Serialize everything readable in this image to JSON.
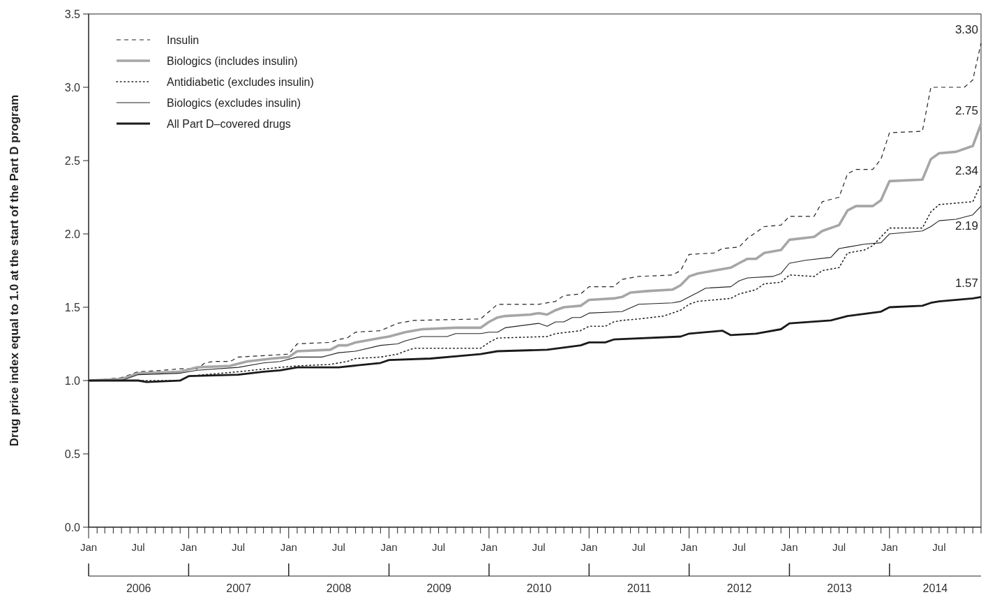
{
  "chart_data": {
    "type": "line",
    "ylabel": "Drug price index equal to 1.0 at the start of the Part D program",
    "xlim": [
      "2006-01",
      "2014-12"
    ],
    "ylim": [
      0,
      3.5
    ],
    "yticks": [
      {
        "value": 0,
        "label": "0.0"
      },
      {
        "value": 0.5,
        "label": "0.5"
      },
      {
        "value": 1,
        "label": "1.0"
      },
      {
        "value": 1.5,
        "label": "1.5"
      },
      {
        "value": 2,
        "label": "2.0"
      },
      {
        "value": 2.5,
        "label": "2.5"
      },
      {
        "value": 3,
        "label": "3.0"
      },
      {
        "value": 3.5,
        "label": "3.5"
      }
    ],
    "xticks": [
      {
        "value": "2006-01",
        "label": "Jan"
      },
      {
        "value": "2006-07",
        "label": "Jul"
      },
      {
        "value": "2007-01",
        "label": "Jan"
      },
      {
        "value": "2007-07",
        "label": "Jul"
      },
      {
        "value": "2008-01",
        "label": "Jan"
      },
      {
        "value": "2008-07",
        "label": "Jul"
      },
      {
        "value": "2009-01",
        "label": "Jan"
      },
      {
        "value": "2009-07",
        "label": "Jul"
      },
      {
        "value": "2010-01",
        "label": "Jan"
      },
      {
        "value": "2010-07",
        "label": "Jul"
      },
      {
        "value": "2011-01",
        "label": "Jan"
      },
      {
        "value": "2011-07",
        "label": "Jul"
      },
      {
        "value": "2012-01",
        "label": "Jan"
      },
      {
        "value": "2012-07",
        "label": "Jul"
      },
      {
        "value": "2013-01",
        "label": "Jan"
      },
      {
        "value": "2013-07",
        "label": "Jul"
      },
      {
        "value": "2014-01",
        "label": "Jan"
      },
      {
        "value": "2014-07",
        "label": "Jul"
      }
    ],
    "annotations": [
      "2006",
      "2007",
      "2008",
      "2009",
      "2010",
      "2011",
      "2012",
      "2013",
      "2014"
    ],
    "legend": "top left",
    "grid": false,
    "marker": "none",
    "series": [
      {
        "name": "Insulin",
        "color": "#222222",
        "line_style": "dashed",
        "x": [
          "2006-01",
          "2006-05",
          "2006-07",
          "2006-10",
          "2006-12",
          "2007-02",
          "2007-03",
          "2007-04",
          "2007-06",
          "2007-07",
          "2007-10",
          "2008-01",
          "2008-02",
          "2008-06",
          "2008-07",
          "2008-08",
          "2008-09",
          "2008-12",
          "2009-02",
          "2009-04",
          "2009-12",
          "2010-01",
          "2010-02",
          "2010-07",
          "2010-09",
          "2010-10",
          "2010-12",
          "2011-01",
          "2011-04",
          "2011-05",
          "2011-07",
          "2011-11",
          "2011-12",
          "2012-01",
          "2012-04",
          "2012-05",
          "2012-07",
          "2012-08",
          "2012-10",
          "2012-12",
          "2013-01",
          "2013-04",
          "2013-05",
          "2013-07",
          "2013-08",
          "2013-09",
          "2013-11",
          "2013-12",
          "2014-01",
          "2014-05",
          "2014-06",
          "2014-10",
          "2014-11",
          "2014-12"
        ],
        "values": [
          1.0,
          1.02,
          1.06,
          1.07,
          1.08,
          1.08,
          1.12,
          1.13,
          1.13,
          1.16,
          1.17,
          1.18,
          1.25,
          1.26,
          1.28,
          1.29,
          1.33,
          1.34,
          1.39,
          1.41,
          1.42,
          1.47,
          1.52,
          1.52,
          1.54,
          1.58,
          1.59,
          1.64,
          1.64,
          1.69,
          1.71,
          1.72,
          1.75,
          1.86,
          1.87,
          1.9,
          1.91,
          1.97,
          2.05,
          2.06,
          2.12,
          2.12,
          2.22,
          2.25,
          2.41,
          2.44,
          2.44,
          2.51,
          2.69,
          2.7,
          3.0,
          3.0,
          3.05,
          3.3
        ],
        "value_labels": [
          null,
          null,
          null,
          null,
          null,
          null,
          null,
          null,
          null,
          null,
          null,
          null,
          null,
          null,
          null,
          null,
          null,
          null,
          null,
          null,
          null,
          null,
          null,
          null,
          null,
          null,
          null,
          null,
          null,
          null,
          null,
          null,
          null,
          null,
          null,
          null,
          null,
          null,
          null,
          null,
          null,
          null,
          null,
          null,
          null,
          null,
          null,
          null,
          null,
          null,
          null,
          null,
          null,
          "3.30"
        ]
      },
      {
        "name": "Biologics (includes insulin)",
        "color": "#a6a6a6",
        "line_style": "solid",
        "x": [
          "2006-01",
          "2006-05",
          "2006-07",
          "2006-12",
          "2007-02",
          "2007-06",
          "2007-08",
          "2007-11",
          "2008-01",
          "2008-02",
          "2008-06",
          "2008-07",
          "2008-08",
          "2008-09",
          "2008-12",
          "2009-01",
          "2009-03",
          "2009-05",
          "2009-09",
          "2009-12",
          "2010-01",
          "2010-02",
          "2010-03",
          "2010-06",
          "2010-07",
          "2010-08",
          "2010-09",
          "2010-10",
          "2010-12",
          "2011-01",
          "2011-04",
          "2011-05",
          "2011-06",
          "2011-08",
          "2011-11",
          "2011-12",
          "2012-01",
          "2012-02",
          "2012-04",
          "2012-06",
          "2012-07",
          "2012-08",
          "2012-09",
          "2012-10",
          "2012-12",
          "2013-01",
          "2013-04",
          "2013-05",
          "2013-07",
          "2013-08",
          "2013-09",
          "2013-11",
          "2013-12",
          "2014-01",
          "2014-05",
          "2014-06",
          "2014-07",
          "2014-09",
          "2014-11",
          "2014-12"
        ],
        "values": [
          1.0,
          1.01,
          1.05,
          1.06,
          1.09,
          1.1,
          1.13,
          1.15,
          1.16,
          1.2,
          1.21,
          1.24,
          1.24,
          1.26,
          1.29,
          1.3,
          1.33,
          1.35,
          1.36,
          1.36,
          1.4,
          1.43,
          1.44,
          1.45,
          1.46,
          1.45,
          1.48,
          1.5,
          1.51,
          1.55,
          1.56,
          1.57,
          1.6,
          1.61,
          1.62,
          1.65,
          1.71,
          1.73,
          1.75,
          1.77,
          1.8,
          1.83,
          1.83,
          1.87,
          1.89,
          1.96,
          1.98,
          2.02,
          2.06,
          2.16,
          2.19,
          2.19,
          2.23,
          2.36,
          2.37,
          2.51,
          2.55,
          2.56,
          2.6,
          2.75
        ],
        "value_labels": [
          null,
          null,
          null,
          null,
          null,
          null,
          null,
          null,
          null,
          null,
          null,
          null,
          null,
          null,
          null,
          null,
          null,
          null,
          null,
          null,
          null,
          null,
          null,
          null,
          null,
          null,
          null,
          null,
          null,
          null,
          null,
          null,
          null,
          null,
          null,
          null,
          null,
          null,
          null,
          null,
          null,
          null,
          null,
          null,
          null,
          null,
          null,
          null,
          null,
          null,
          null,
          null,
          null,
          null,
          null,
          null,
          null,
          null,
          null,
          "2.75"
        ]
      },
      {
        "name": "Antidiabetic (excludes insulin)",
        "color": "#222222",
        "line_style": "dotted",
        "x": [
          "2006-01",
          "2006-12",
          "2007-01",
          "2007-03",
          "2007-07",
          "2007-12",
          "2008-02",
          "2008-06",
          "2008-08",
          "2008-09",
          "2008-12",
          "2009-02",
          "2009-03",
          "2009-04",
          "2009-12",
          "2010-01",
          "2010-02",
          "2010-08",
          "2010-09",
          "2010-12",
          "2011-01",
          "2011-03",
          "2011-04",
          "2011-05",
          "2011-07",
          "2011-10",
          "2011-12",
          "2012-01",
          "2012-02",
          "2012-06",
          "2012-07",
          "2012-09",
          "2012-10",
          "2012-12",
          "2013-01",
          "2013-04",
          "2013-05",
          "2013-07",
          "2013-08",
          "2013-10",
          "2013-11",
          "2014-01",
          "2014-05",
          "2014-06",
          "2014-07",
          "2014-09",
          "2014-11",
          "2014-12"
        ],
        "values": [
          1.0,
          1.0,
          1.03,
          1.04,
          1.06,
          1.09,
          1.1,
          1.11,
          1.13,
          1.15,
          1.16,
          1.18,
          1.2,
          1.22,
          1.22,
          1.26,
          1.29,
          1.3,
          1.32,
          1.34,
          1.37,
          1.37,
          1.4,
          1.41,
          1.42,
          1.44,
          1.48,
          1.52,
          1.54,
          1.56,
          1.59,
          1.62,
          1.66,
          1.67,
          1.72,
          1.71,
          1.75,
          1.77,
          1.87,
          1.89,
          1.92,
          2.04,
          2.04,
          2.15,
          2.2,
          2.21,
          2.22,
          2.34
        ],
        "value_labels": [
          null,
          null,
          null,
          null,
          null,
          null,
          null,
          null,
          null,
          null,
          null,
          null,
          null,
          null,
          null,
          null,
          null,
          null,
          null,
          null,
          null,
          null,
          null,
          null,
          null,
          null,
          null,
          null,
          null,
          null,
          null,
          null,
          null,
          null,
          null,
          null,
          null,
          null,
          null,
          null,
          null,
          null,
          null,
          null,
          null,
          null,
          null,
          "2.34"
        ]
      },
      {
        "name": "Biologics (excludes insulin)",
        "color": "#222222",
        "line_style": "solid",
        "x": [
          "2006-01",
          "2006-05",
          "2006-07",
          "2006-12",
          "2007-02",
          "2007-07",
          "2007-10",
          "2007-12",
          "2008-02",
          "2008-05",
          "2008-07",
          "2008-09",
          "2008-12",
          "2009-02",
          "2009-03",
          "2009-05",
          "2009-08",
          "2009-09",
          "2009-12",
          "2010-01",
          "2010-02",
          "2010-03",
          "2010-07",
          "2010-08",
          "2010-09",
          "2010-10",
          "2010-11",
          "2010-12",
          "2011-01",
          "2011-05",
          "2011-07",
          "2011-11",
          "2011-12",
          "2012-01",
          "2012-02",
          "2012-03",
          "2012-06",
          "2012-07",
          "2012-08",
          "2012-11",
          "2012-12",
          "2013-01",
          "2013-03",
          "2013-06",
          "2013-07",
          "2013-08",
          "2013-10",
          "2013-12",
          "2014-01",
          "2014-05",
          "2014-06",
          "2014-07",
          "2014-09",
          "2014-11",
          "2014-12"
        ],
        "values": [
          1.0,
          1.0,
          1.04,
          1.05,
          1.07,
          1.09,
          1.12,
          1.13,
          1.16,
          1.16,
          1.19,
          1.2,
          1.24,
          1.25,
          1.27,
          1.3,
          1.3,
          1.32,
          1.32,
          1.33,
          1.33,
          1.36,
          1.39,
          1.37,
          1.4,
          1.4,
          1.43,
          1.43,
          1.46,
          1.47,
          1.52,
          1.53,
          1.54,
          1.57,
          1.6,
          1.63,
          1.64,
          1.68,
          1.7,
          1.71,
          1.73,
          1.8,
          1.82,
          1.84,
          1.9,
          1.91,
          1.93,
          1.94,
          2.0,
          2.02,
          2.05,
          2.09,
          2.1,
          2.13,
          2.19
        ],
        "value_labels": [
          null,
          null,
          null,
          null,
          null,
          null,
          null,
          null,
          null,
          null,
          null,
          null,
          null,
          null,
          null,
          null,
          null,
          null,
          null,
          null,
          null,
          null,
          null,
          null,
          null,
          null,
          null,
          null,
          null,
          null,
          null,
          null,
          null,
          null,
          null,
          null,
          null,
          null,
          null,
          null,
          null,
          null,
          null,
          null,
          null,
          null,
          null,
          null,
          null,
          null,
          null,
          null,
          null,
          null,
          "2.19"
        ]
      },
      {
        "name": "All Part D–covered drugs",
        "color": "#1a1a1a",
        "line_style": "solid",
        "x": [
          "2006-01",
          "2006-07",
          "2006-08",
          "2006-12",
          "2007-01",
          "2007-07",
          "2007-10",
          "2007-12",
          "2008-02",
          "2008-07",
          "2008-12",
          "2009-01",
          "2009-06",
          "2009-12",
          "2010-02",
          "2010-08",
          "2010-12",
          "2011-01",
          "2011-03",
          "2011-04",
          "2011-12",
          "2012-01",
          "2012-05",
          "2012-06",
          "2012-09",
          "2012-12",
          "2013-01",
          "2013-06",
          "2013-08",
          "2013-12",
          "2014-01",
          "2014-05",
          "2014-06",
          "2014-07",
          "2014-11",
          "2014-12"
        ],
        "values": [
          1.0,
          1.0,
          0.99,
          1.0,
          1.03,
          1.04,
          1.06,
          1.07,
          1.09,
          1.09,
          1.12,
          1.14,
          1.15,
          1.18,
          1.2,
          1.21,
          1.24,
          1.26,
          1.26,
          1.28,
          1.3,
          1.32,
          1.34,
          1.31,
          1.32,
          1.35,
          1.39,
          1.41,
          1.44,
          1.47,
          1.5,
          1.51,
          1.53,
          1.54,
          1.56,
          1.57
        ],
        "value_labels": [
          null,
          null,
          null,
          null,
          null,
          null,
          null,
          null,
          null,
          null,
          null,
          null,
          null,
          null,
          null,
          null,
          null,
          null,
          null,
          null,
          null,
          null,
          null,
          null,
          null,
          null,
          null,
          null,
          null,
          null,
          null,
          null,
          null,
          null,
          null,
          "1.57"
        ]
      }
    ]
  }
}
